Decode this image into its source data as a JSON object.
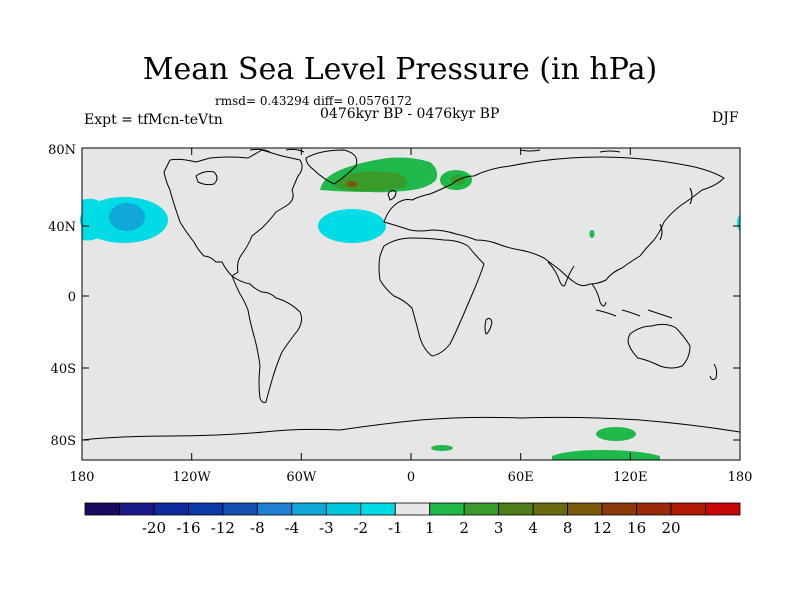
{
  "title": "Mean Sea Level Pressure (in hPa)",
  "stats": "rmsd= 0.43294 diff= 0.0576172",
  "left_label": "Expt = tfMcn-teVtn",
  "center_label": "0476kyr BP - 0476kyr BP",
  "right_label": "DJF",
  "map": {
    "projection": "cylindrical equidistant",
    "background_color": "#e6e6e6",
    "lat_ticks": [
      "80N",
      "40N",
      "0",
      "40S",
      "80S"
    ],
    "lon_ticks": [
      "180",
      "120W",
      "60W",
      "0",
      "60E",
      "120E",
      "180"
    ],
    "anomaly_regions": [
      {
        "name": "north-pacific-low",
        "level": "-2 to -1",
        "core_level": "-3 to -2"
      },
      {
        "name": "mid-atlantic-low",
        "level": "-2 to -1"
      },
      {
        "name": "greenland-iceland-high",
        "level": "1 to 2",
        "core_level": "2 to 3"
      },
      {
        "name": "scandinavia-high",
        "level": "1 to 2"
      },
      {
        "name": "antarctic-coast-high",
        "level": "1 to 2"
      }
    ]
  },
  "colorbar": {
    "labels": [
      "-20",
      "-16",
      "-12",
      "-8",
      "-4",
      "-3",
      "-2",
      "-1",
      "1",
      "2",
      "3",
      "4",
      "8",
      "12",
      "16",
      "20"
    ],
    "colors": [
      "#1a0a5e",
      "#1a1a8a",
      "#0d2a9e",
      "#0a3aa8",
      "#1450b0",
      "#1f7fd0",
      "#10a8d8",
      "#00c8dc",
      "#00dce6",
      "#e6e6e6",
      "#1fb84a",
      "#3a9a2a",
      "#4e7c1a",
      "#6a6a10",
      "#7a5a08",
      "#8a3a08",
      "#9a2a08",
      "#b01808",
      "#c80808"
    ]
  }
}
